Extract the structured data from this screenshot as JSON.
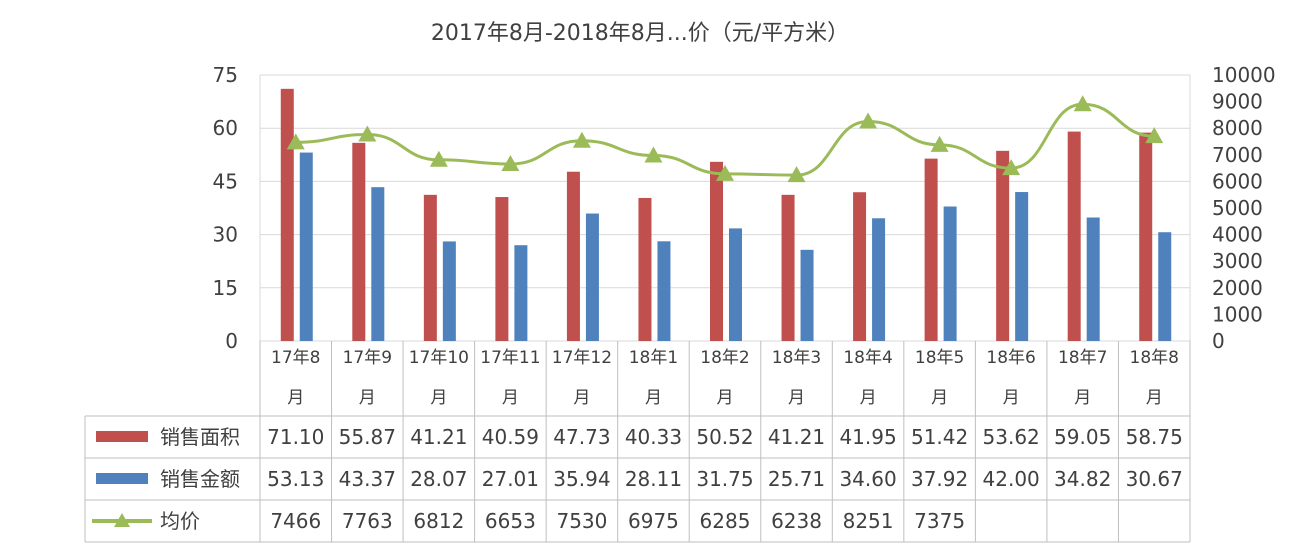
{
  "chart_data": {
    "type": "bar",
    "title": "2017年8月-2018年8月...价（元/平方米）",
    "categories": [
      "17年8月",
      "17年9月",
      "17年10月",
      "17年11月",
      "17年12月",
      "18年1月",
      "18年2月",
      "18年3月",
      "18年4月",
      "18年5月",
      "18年6月",
      "18年7月",
      "18年8月"
    ],
    "category_labels_top": [
      "17年8",
      "17年9",
      "17年10",
      "17年11",
      "17年12",
      "18年1",
      "18年2",
      "18年3",
      "18年4",
      "18年5",
      "18年6",
      "18年7",
      "18年8"
    ],
    "category_labels_bottom": [
      "月",
      "月",
      "月",
      "月",
      "月",
      "月",
      "月",
      "月",
      "月",
      "月",
      "月",
      "月",
      "月"
    ],
    "series": [
      {
        "name": "销售面积",
        "type": "bar",
        "axis": "left",
        "color": "#c0504d",
        "values": [
          71.1,
          55.87,
          41.21,
          40.59,
          47.73,
          40.33,
          50.52,
          41.21,
          41.95,
          51.42,
          53.62,
          59.05,
          58.75
        ],
        "display": [
          "71.10",
          "55.87",
          "41.21",
          "40.59",
          "47.73",
          "40.33",
          "50.52",
          "41.21",
          "41.95",
          "51.42",
          "53.62",
          "59.05",
          "58.75"
        ]
      },
      {
        "name": "销售金额",
        "type": "bar",
        "axis": "left",
        "color": "#4f81bd",
        "values": [
          53.13,
          43.37,
          28.07,
          27.01,
          35.94,
          28.11,
          31.75,
          25.71,
          34.6,
          37.92,
          42.0,
          34.82,
          30.67
        ],
        "display": [
          "53.13",
          "43.37",
          "28.07",
          "27.01",
          "35.94",
          "28.11",
          "31.75",
          "25.71",
          "34.60",
          "37.92",
          "42.00",
          "34.82",
          "30.67"
        ]
      },
      {
        "name": "均价",
        "type": "line",
        "axis": "right",
        "color": "#9bbb59",
        "values": [
          7466,
          7763,
          6812,
          6653,
          7530,
          6975,
          6285,
          6238,
          8251,
          7375,
          6500,
          8900,
          7700
        ],
        "display": [
          "7466",
          "7763",
          "6812",
          "6653",
          "7530",
          "6975",
          "6285",
          "6238",
          "8251",
          "7375",
          "",
          "",
          ""
        ]
      }
    ],
    "left_axis": {
      "ylim": [
        0,
        75
      ],
      "ticks": [
        "0",
        "15",
        "30",
        "45",
        "60",
        "75"
      ]
    },
    "right_axis": {
      "ylim": [
        0,
        10000
      ],
      "ticks": [
        "0",
        "1000",
        "2000",
        "3000",
        "4000",
        "5000",
        "6000",
        "7000",
        "8000",
        "9000",
        "10000"
      ]
    },
    "grid": true,
    "legend": "data-table"
  }
}
